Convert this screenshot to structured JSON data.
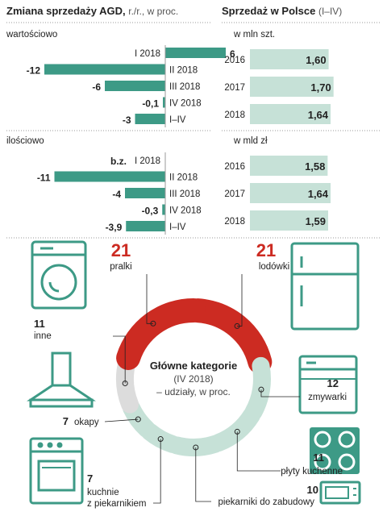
{
  "colors": {
    "teal": "#3d9a86",
    "light_teal": "#c6e1d7",
    "red": "#cc2b22",
    "grey": "#dcdcdc",
    "icon": "#3d9a86"
  },
  "left_title": "Zmiana sprzedaży AGD,",
  "left_subtitle": "r./r., w proc.",
  "right_title": "Sprzedaż w Polsce",
  "right_subtitle": "(I–IV)",
  "chart_data": [
    {
      "type": "bar",
      "orientation": "horizontal",
      "panel": "left-top",
      "label": "wartościowo",
      "categories": [
        "I 2018",
        "II 2018",
        "III 2018",
        "IV 2018",
        "I–IV"
      ],
      "values": [
        6,
        -12,
        -6,
        -0.1,
        -3
      ],
      "value_labels": [
        "6",
        "-12",
        "-6",
        "-0,1",
        "-3"
      ]
    },
    {
      "type": "bar",
      "orientation": "horizontal",
      "panel": "left-bottom",
      "label": "ilościowo",
      "categories": [
        "I 2018",
        "II 2018",
        "III 2018",
        "IV 2018",
        "I–IV"
      ],
      "values": [
        null,
        -11,
        -4,
        -0.3,
        -3.9
      ],
      "value_labels": [
        "b.z.",
        "-11",
        "-4",
        "-0,3",
        "-3,9"
      ]
    },
    {
      "type": "bar",
      "orientation": "horizontal",
      "panel": "right-top",
      "label": "w mln szt.",
      "categories": [
        "2016",
        "2017",
        "2018"
      ],
      "values": [
        1.6,
        1.7,
        1.64
      ],
      "value_labels": [
        "1,60",
        "1,70",
        "1,64"
      ]
    },
    {
      "type": "bar",
      "orientation": "horizontal",
      "panel": "right-bottom",
      "label": "w mld zł",
      "categories": [
        "2016",
        "2017",
        "2018"
      ],
      "values": [
        1.58,
        1.64,
        1.59
      ],
      "value_labels": [
        "1,58",
        "1,64",
        "1,59"
      ]
    },
    {
      "type": "pie",
      "title": "Główne kategorie",
      "subtitle": "(IV 2018)",
      "subtitle2": "– udziały, w proc.",
      "slices": [
        {
          "label": "lodówki",
          "value": 21,
          "highlight": true
        },
        {
          "label": "zmywarki",
          "value": 12,
          "highlight": false
        },
        {
          "label": "płyty kuchenne",
          "value": 11,
          "highlight": false
        },
        {
          "label": "piekarniki do zabudowy",
          "value": 10,
          "highlight": false
        },
        {
          "label": "kuchnie z piekarnikiem",
          "label_lines": [
            "kuchnie",
            "z piekarnikiem"
          ],
          "value": 7,
          "highlight": false
        },
        {
          "label": "okapy",
          "value": 7,
          "highlight": false
        },
        {
          "label": "inne",
          "value": 11,
          "highlight": false,
          "muted": true
        },
        {
          "label": "pralki",
          "value": 21,
          "highlight": true
        }
      ]
    }
  ]
}
